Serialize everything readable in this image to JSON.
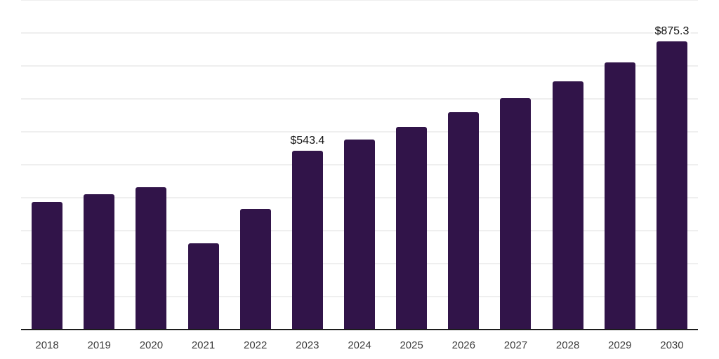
{
  "chart_data": {
    "type": "bar",
    "title": "",
    "categories": [
      "2018",
      "2019",
      "2020",
      "2021",
      "2022",
      "2023",
      "2024",
      "2025",
      "2026",
      "2027",
      "2028",
      "2029",
      "2030"
    ],
    "values": [
      388,
      410,
      433,
      261,
      365,
      543.4,
      577,
      615,
      659,
      702,
      753,
      810,
      875.3
    ],
    "bar_value_labels": [
      "",
      "",
      "",
      "",
      "",
      "$543.4",
      "",
      "",
      "",
      "",
      "",
      "",
      "$875.3"
    ],
    "xlabel": "",
    "ylabel": "",
    "ylim": [
      0,
      1000
    ],
    "gridline_step": 100,
    "grid": true,
    "legend": false,
    "colors": {
      "bar": "#311449",
      "axis_line": "#1c1c1c",
      "gridline": "#efefef",
      "value_label": "#111111",
      "tick_label": "#3d3d3d",
      "background": "#ffffff"
    }
  }
}
